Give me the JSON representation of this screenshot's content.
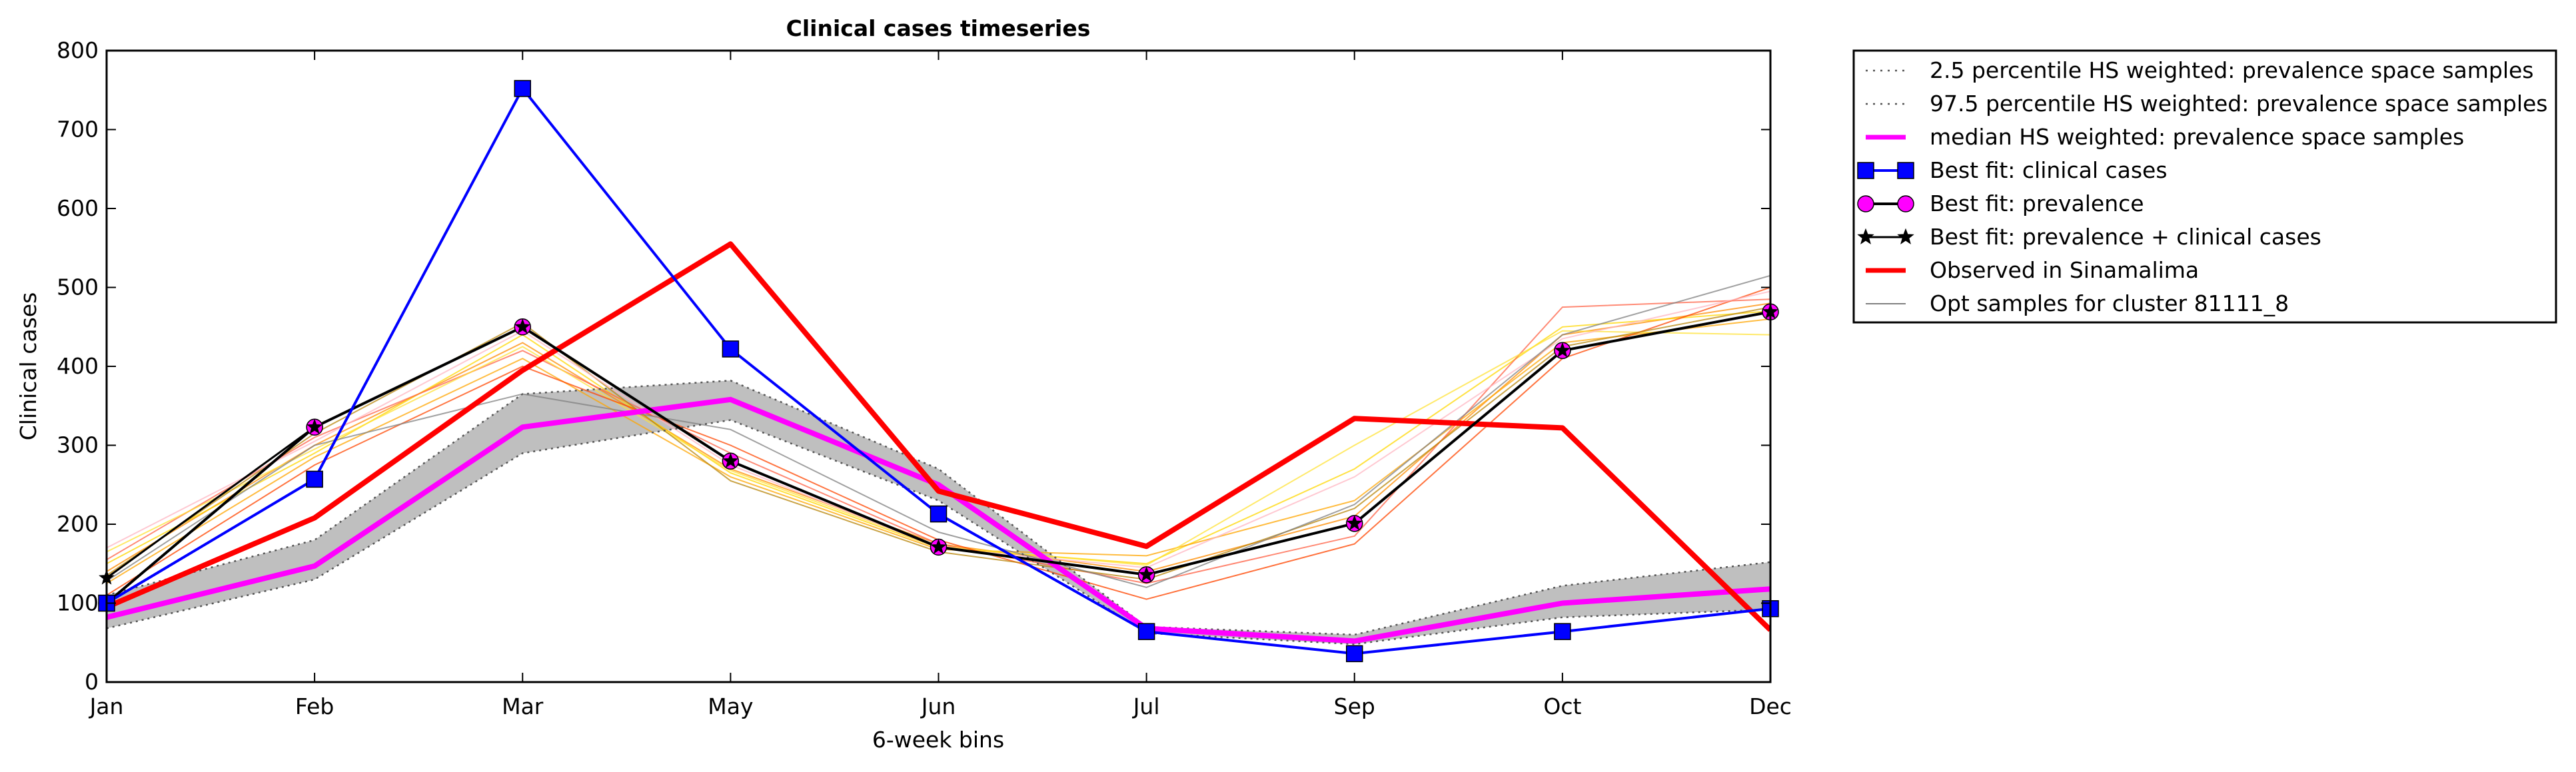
{
  "chart_data": {
    "type": "line",
    "title": "Clinical cases timeseries",
    "xlabel": "6-week bins",
    "ylabel": "Clinical cases",
    "categories": [
      "Jan",
      "Feb",
      "Mar",
      "May",
      "Jun",
      "Jul",
      "Sep",
      "Oct",
      "Dec"
    ],
    "ylim": [
      0,
      800
    ],
    "yticks": [
      0,
      100,
      200,
      300,
      400,
      500,
      600,
      700,
      800
    ],
    "grid": false,
    "legend_position": "outside-right",
    "band": {
      "lower": [
        68,
        130,
        290,
        332,
        230,
        62,
        48,
        82,
        92
      ],
      "upper": [
        110,
        180,
        365,
        382,
        270,
        70,
        60,
        122,
        152
      ],
      "fill_color": "#bfbfbf"
    },
    "series": [
      {
        "name": "2.5 percentile HS weighted: prevalence space samples",
        "style": "dotted",
        "color": "#555555",
        "values": [
          68,
          130,
          290,
          332,
          230,
          62,
          48,
          82,
          92
        ]
      },
      {
        "name": "97.5 percentile HS weighted: prevalence space samples",
        "style": "dotted",
        "color": "#555555",
        "values": [
          110,
          180,
          365,
          382,
          270,
          70,
          60,
          122,
          152
        ]
      },
      {
        "name": "median HS weighted: prevalence space samples",
        "style": "solid",
        "color": "#ff00ff",
        "values": [
          82,
          147,
          323,
          358,
          250,
          68,
          52,
          100,
          118
        ]
      },
      {
        "name": "Best fit: clinical cases",
        "style": "solid",
        "color": "#0000ff",
        "marker": "square",
        "values": [
          100,
          257,
          752,
          422,
          213,
          64,
          36,
          64,
          93
        ]
      },
      {
        "name": "Best fit: prevalence",
        "style": "solid",
        "color": "#000000",
        "marker": "circle",
        "values": [
          100,
          323,
          450,
          280,
          171,
          136,
          201,
          420,
          469
        ]
      },
      {
        "name": "Best fit: prevalence + clinical cases",
        "style": "solid",
        "color": "#000000",
        "marker": "star",
        "values": [
          132,
          323,
          450,
          280,
          171,
          136,
          201,
          420,
          469
        ]
      },
      {
        "name": "Observed in Sinamalima",
        "style": "solid",
        "color": "#ff0000",
        "values": [
          95,
          208,
          395,
          555,
          242,
          172,
          334,
          322,
          66
        ]
      },
      {
        "name": "Opt samples for cluster 81111_8",
        "style": "solid",
        "color": "#808080",
        "values": [
          120,
          280,
          375,
          238,
          160,
          115,
          240,
          390,
          410
        ]
      }
    ],
    "opt_samples": [
      {
        "color": "#ff8c00",
        "values": [
          140,
          300,
          430,
          270,
          175,
          140,
          210,
          440,
          480
        ]
      },
      {
        "color": "#ffd700",
        "values": [
          150,
          290,
          440,
          265,
          170,
          150,
          270,
          450,
          470
        ]
      },
      {
        "color": "#ff6347",
        "values": [
          155,
          310,
          420,
          290,
          175,
          125,
          185,
          475,
          485
        ]
      },
      {
        "color": "#ffa500",
        "values": [
          125,
          285,
          410,
          260,
          168,
          160,
          230,
          430,
          460
        ]
      },
      {
        "color": "#ffe135",
        "values": [
          165,
          295,
          425,
          268,
          172,
          148,
          300,
          445,
          440
        ]
      },
      {
        "color": "#ff4500",
        "values": [
          110,
          275,
          400,
          300,
          180,
          105,
          175,
          410,
          500
        ]
      },
      {
        "color": "#b8860b",
        "values": [
          135,
          315,
          455,
          255,
          165,
          130,
          220,
          425,
          475
        ]
      },
      {
        "color": "#ffb6c1",
        "values": [
          170,
          305,
          445,
          275,
          170,
          145,
          260,
          435,
          495
        ]
      },
      {
        "color": "#808080",
        "values": [
          128,
          300,
          365,
          320,
          190,
          120,
          225,
          440,
          515
        ]
      }
    ]
  }
}
